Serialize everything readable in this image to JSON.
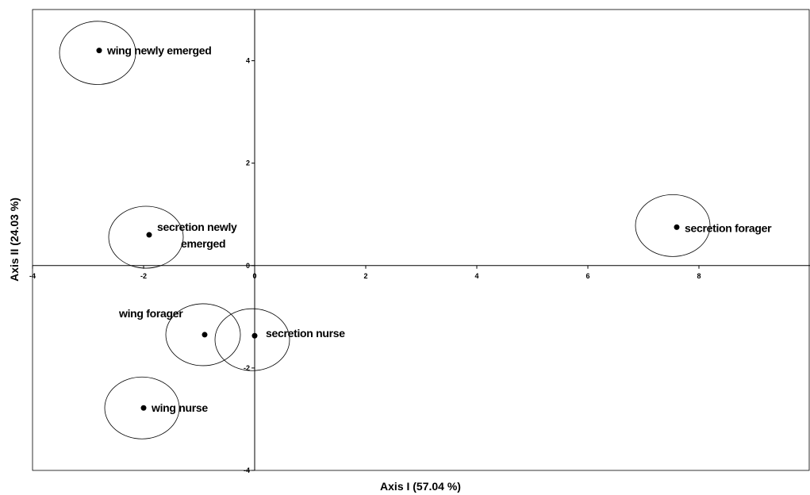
{
  "chart_data": {
    "type": "scatter",
    "xlabel": "Axis I (57.04 %)",
    "ylabel": "Axis II (24.03 %)",
    "xlim": [
      -4,
      10
    ],
    "ylim": [
      -4,
      5
    ],
    "x_ticks": [
      "-4",
      "-2",
      "0",
      "2",
      "4",
      "6",
      "8"
    ],
    "y_ticks": [
      "4",
      "2",
      "0",
      "-2",
      "-4"
    ],
    "grid": false,
    "points": [
      {
        "label": "wing newly emerged",
        "x": -2.8,
        "y": 4.2
      },
      {
        "label": "secretion newly emerged",
        "x": -1.9,
        "y": 0.6
      },
      {
        "label": "secretion forager",
        "x": 7.6,
        "y": 0.75
      },
      {
        "label": "wing forager",
        "x": -0.9,
        "y": -1.35
      },
      {
        "label": "secretion nurse",
        "x": 0.0,
        "y": -1.37
      },
      {
        "label": "wing nurse",
        "x": -2.0,
        "y": -2.78
      }
    ]
  }
}
